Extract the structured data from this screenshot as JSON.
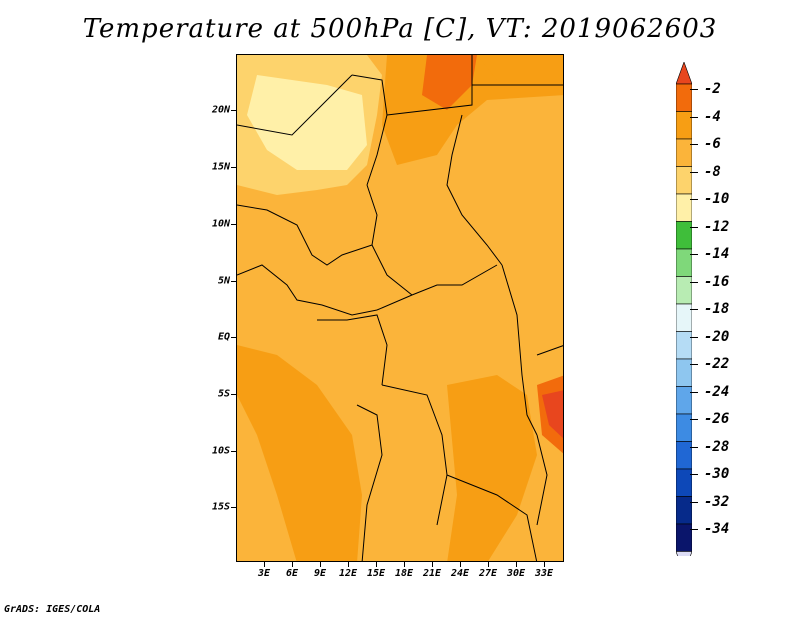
{
  "title": "Temperature at 500hPa [C], VT: 2019062603",
  "credit": "GrADS: IGES/COLA",
  "lat_labels": [
    "20N",
    "15N",
    "10N",
    "5N",
    "EQ",
    "5S",
    "10S",
    "15S"
  ],
  "lon_labels": [
    "3E",
    "6E",
    "9E",
    "12E",
    "15E",
    "18E",
    "21E",
    "24E",
    "27E",
    "30E",
    "33E"
  ],
  "colorbar": {
    "labels": [
      "-2",
      "-4",
      "-6",
      "-8",
      "-10",
      "-12",
      "-14",
      "-16",
      "-18",
      "-20",
      "-22",
      "-24",
      "-26",
      "-28",
      "-30",
      "-32",
      "-34"
    ],
    "colors": [
      "#e8461e",
      "#f26b0c",
      "#f79e14",
      "#fbb43a",
      "#fdd36c",
      "#fff0a8",
      "#3fbe3a",
      "#7fd87a",
      "#b8ecb3",
      "#e6f6f9",
      "#b5dcf5",
      "#8ec6ef",
      "#5fa6ea",
      "#3d8be3",
      "#2067d4",
      "#0d48b8",
      "#062a8a",
      "#0a156b",
      "#dcdcf5"
    ]
  }
}
